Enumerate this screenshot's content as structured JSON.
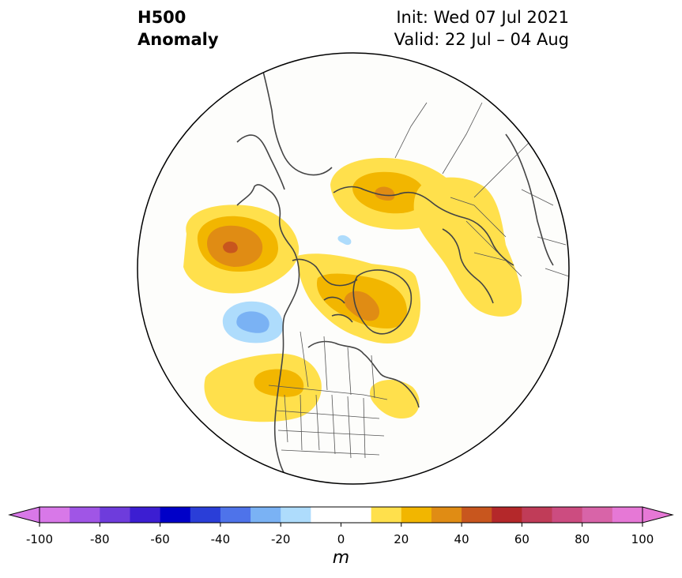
{
  "title": {
    "variable": "H500",
    "field": "Anomaly",
    "init": "Init: Wed 07 Jul 2021",
    "valid": "Valid: 22 Jul – 04 Aug"
  },
  "map": {
    "projection": "north-polar-stereographic",
    "region": "Northern Hemisphere / North America",
    "anomaly_features": [
      {
        "where": "Gulf of Alaska / NE Pacific",
        "sign": "positive",
        "peak_range": "40 to 50"
      },
      {
        "where": "Greenland / Baffin Bay",
        "sign": "positive",
        "peak_range": "30 to 40"
      },
      {
        "where": "Central Siberia",
        "sign": "positive",
        "peak_range": "30 to 40"
      },
      {
        "where": "Eastern Europe / Western Russia",
        "sign": "positive",
        "peak_range": "10 to 20"
      },
      {
        "where": "Northern Rockies / US West",
        "sign": "positive",
        "peak_range": "20 to 30"
      },
      {
        "where": "US Northeast / Atlantic coast",
        "sign": "positive",
        "peak_range": "10 to 20"
      },
      {
        "where": "NE Pacific south of Alaska",
        "sign": "negative",
        "peak_range": "-30 to -20"
      },
      {
        "where": "Arctic Ocean near pole",
        "sign": "negative",
        "peak_range": "-20 to -10"
      }
    ]
  },
  "colorbar": {
    "tick_labels": [
      "-100",
      "-80",
      "-60",
      "-40",
      "-20",
      "0",
      "20",
      "40",
      "60",
      "80",
      "100"
    ],
    "tick_values": [
      -100,
      -80,
      -60,
      -40,
      -20,
      0,
      20,
      40,
      60,
      80,
      100
    ],
    "bounds": [
      -100,
      100
    ],
    "step": 10,
    "extend": "both",
    "unit": "m",
    "colors": [
      "#d878e8",
      "#a055e6",
      "#6e3cdc",
      "#3c1ed2",
      "#0000c8",
      "#2a3ed8",
      "#4e73ea",
      "#7ab2f4",
      "#aedcfc",
      "#ffffff",
      "#ffffff",
      "#ffe04c",
      "#f2b600",
      "#e08c14",
      "#c8561e",
      "#b4282a",
      "#c03c58",
      "#cc4c80",
      "#d864a8",
      "#e678d6"
    ],
    "under_color": "#d878e8",
    "over_color": "#e678d6"
  },
  "colors": {
    "ocean": "#fdfdfb",
    "coastline": "#444444"
  }
}
